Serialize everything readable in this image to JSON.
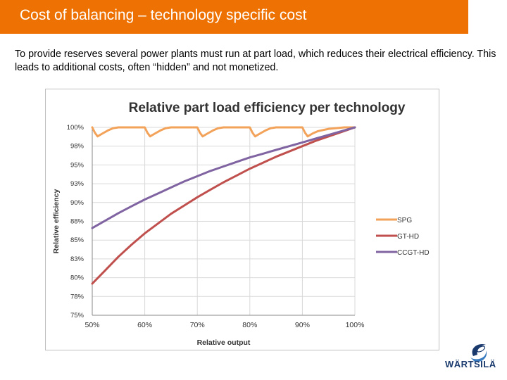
{
  "slide": {
    "title": "Cost of balancing – technology specific cost",
    "body": "To provide reserves several power plants must run at part load, which reduces their electrical efficiency. This leads to additional costs, often “hidden” and not monetized."
  },
  "logo": {
    "text": "WÄRTSILÄ"
  },
  "chart_data": {
    "type": "line",
    "title": "Relative part load efficiency per technology",
    "xlabel": "Relative output",
    "ylabel": "Relative efficiency",
    "xlim": [
      50,
      100
    ],
    "ylim": [
      75,
      100
    ],
    "xticks": [
      "50%",
      "60%",
      "70%",
      "80%",
      "90%",
      "100%"
    ],
    "yticks": [
      "75%",
      "78%",
      "80%",
      "83%",
      "85%",
      "88%",
      "90%",
      "93%",
      "95%",
      "98%",
      "100%"
    ],
    "grid": true,
    "legend_position": "right",
    "series": [
      {
        "name": "SPG",
        "color": "#f3a25a",
        "x": [
          50,
          50.5,
          51,
          52,
          53,
          54,
          55,
          58,
          60,
          60.5,
          61,
          62,
          63,
          64,
          65,
          68,
          70,
          70.5,
          71,
          72,
          73,
          74,
          75,
          78,
          80,
          80.5,
          81,
          82,
          83,
          84,
          85,
          88,
          90,
          90.5,
          91,
          92,
          93,
          95,
          98,
          100
        ],
        "y": [
          100,
          99.3,
          98.8,
          99.2,
          99.6,
          99.9,
          100,
          100,
          100,
          99.3,
          98.8,
          99.2,
          99.6,
          99.9,
          100,
          100,
          100,
          99.3,
          98.8,
          99.2,
          99.6,
          99.9,
          100,
          100,
          100,
          99.3,
          98.8,
          99.2,
          99.6,
          99.9,
          100,
          100,
          100,
          99.3,
          98.8,
          99.2,
          99.5,
          99.8,
          100,
          100
        ]
      },
      {
        "name": "GT-HD",
        "color": "#c0504d",
        "x": [
          50,
          52.5,
          55,
          57.5,
          60,
          62.5,
          65,
          67.5,
          70,
          72.5,
          75,
          77.5,
          80,
          82.5,
          85,
          87.5,
          90,
          92.5,
          95,
          97.5,
          100
        ],
        "y": [
          79.2,
          81,
          82.8,
          84.4,
          85.9,
          87.2,
          88.5,
          89.6,
          90.7,
          91.7,
          92.7,
          93.6,
          94.5,
          95.3,
          96.1,
          96.8,
          97.5,
          98.2,
          98.8,
          99.4,
          100
        ]
      },
      {
        "name": "CCGT-HD",
        "color": "#8064a2",
        "x": [
          50,
          52.5,
          55,
          57.5,
          60,
          62.5,
          65,
          67.5,
          70,
          72.5,
          75,
          77.5,
          80,
          82.5,
          85,
          87.5,
          90,
          92.5,
          95,
          97.5,
          100
        ],
        "y": [
          86.6,
          87.6,
          88.6,
          89.5,
          90.4,
          91.2,
          92,
          92.8,
          93.5,
          94.2,
          94.8,
          95.4,
          96,
          96.5,
          97,
          97.5,
          98,
          98.5,
          99,
          99.5,
          100
        ]
      }
    ]
  }
}
